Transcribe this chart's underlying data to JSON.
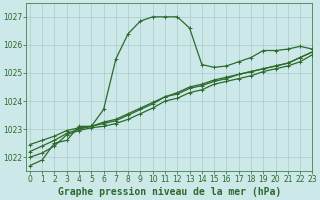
{
  "title": "Graphe pression niveau de la mer (hPa)",
  "background_color": "#cce8e8",
  "grid_color": "#aacccc",
  "line_color": "#2d6a2d",
  "xlim": [
    -0.3,
    23
  ],
  "ylim": [
    1021.5,
    1027.5
  ],
  "yticks": [
    1022,
    1023,
    1024,
    1025,
    1026,
    1027
  ],
  "xticks": [
    0,
    1,
    2,
    3,
    4,
    5,
    6,
    7,
    8,
    9,
    10,
    11,
    12,
    13,
    14,
    15,
    16,
    17,
    18,
    19,
    20,
    21,
    22,
    23
  ],
  "series": [
    {
      "y": [
        1021.7,
        1021.9,
        1022.5,
        1022.6,
        1023.1,
        1023.1,
        1023.7,
        1025.5,
        1026.4,
        1026.85,
        1027.0,
        1027.0,
        1027.0,
        1026.6,
        1025.3,
        1025.2,
        1025.25,
        1025.4,
        1025.55,
        1025.8,
        1025.8,
        1025.85,
        1025.95,
        1025.85
      ],
      "markers": true,
      "lw": 0.9
    },
    {
      "y": [
        1022.0,
        1022.15,
        1022.4,
        1022.8,
        1022.95,
        1023.05,
        1023.1,
        1023.2,
        1023.35,
        1023.55,
        1023.75,
        1024.0,
        1024.1,
        1024.3,
        1024.4,
        1024.6,
        1024.7,
        1024.8,
        1024.9,
        1025.05,
        1025.15,
        1025.25,
        1025.4,
        1025.65
      ],
      "markers": true,
      "lw": 0.9
    },
    {
      "y": [
        1022.2,
        1022.4,
        1022.6,
        1022.85,
        1023.0,
        1023.1,
        1023.2,
        1023.3,
        1023.5,
        1023.7,
        1023.9,
        1024.15,
        1024.25,
        1024.45,
        1024.55,
        1024.7,
        1024.8,
        1024.95,
        1025.05,
        1025.15,
        1025.25,
        1025.35,
        1025.55,
        1025.75
      ],
      "markers": true,
      "lw": 0.9
    },
    {
      "y": [
        1022.45,
        1022.6,
        1022.75,
        1022.95,
        1023.05,
        1023.1,
        1023.25,
        1023.35,
        1023.55,
        1023.75,
        1023.95,
        1024.15,
        1024.3,
        1024.5,
        1024.6,
        1024.75,
        1024.85,
        1024.95,
        1025.05,
        1025.15,
        1025.25,
        1025.35,
        1025.55,
        1025.75
      ],
      "markers": true,
      "lw": 0.9
    }
  ],
  "fontsize_title": 7,
  "fontsize_ticks": 5.5,
  "ylabel_fontsize": 5.5
}
